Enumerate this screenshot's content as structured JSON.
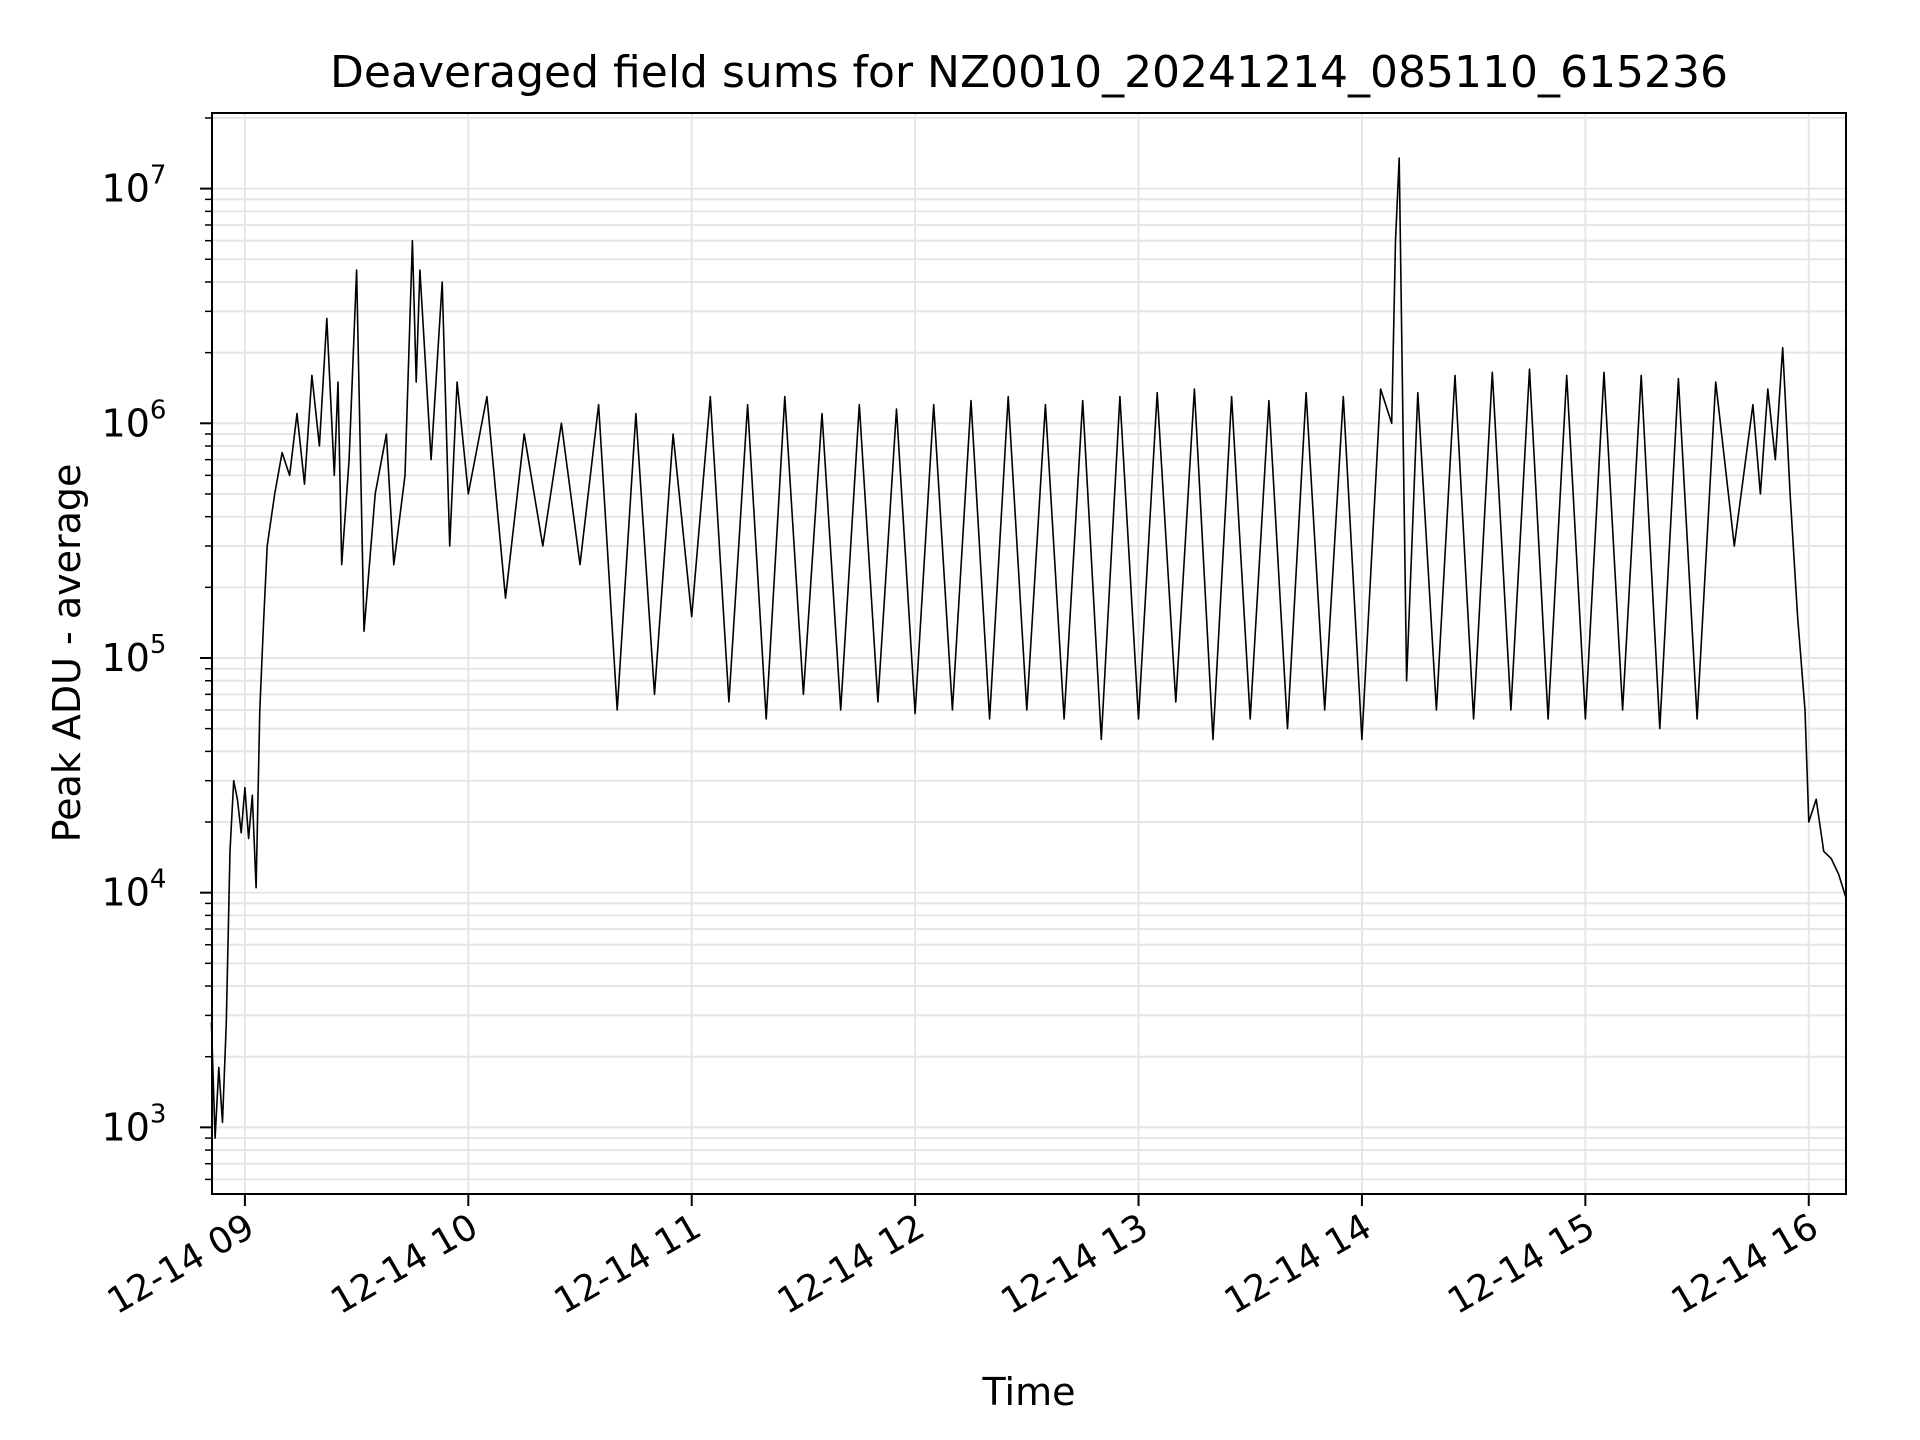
{
  "chart_data": {
    "type": "line",
    "title": "Deaveraged field sums for NZ0010_20241214_085110_615236",
    "xlabel": "Time",
    "ylabel": "Peak ADU - average",
    "yscale": "log",
    "ylim": [
      520,
      21000000
    ],
    "xlim": [
      "2024-12-14 08:51:10",
      "2024-12-14 16:10:00"
    ],
    "x_ticks": [
      {
        "time": "2024-12-14 09:00",
        "label": "12-14 09"
      },
      {
        "time": "2024-12-14 10:00",
        "label": "12-14 10"
      },
      {
        "time": "2024-12-14 11:00",
        "label": "12-14 11"
      },
      {
        "time": "2024-12-14 12:00",
        "label": "12-14 12"
      },
      {
        "time": "2024-12-14 13:00",
        "label": "12-14 13"
      },
      {
        "time": "2024-12-14 14:00",
        "label": "12-14 14"
      },
      {
        "time": "2024-12-14 15:00",
        "label": "12-14 15"
      },
      {
        "time": "2024-12-14 16:00",
        "label": "12-14 16"
      }
    ],
    "y_ticks": [
      {
        "value": 1000,
        "base": "10",
        "exp": "3"
      },
      {
        "value": 10000,
        "base": "10",
        "exp": "4"
      },
      {
        "value": 100000,
        "base": "10",
        "exp": "5"
      },
      {
        "value": 1000000,
        "base": "10",
        "exp": "6"
      },
      {
        "value": 10000000,
        "base": "10",
        "exp": "7"
      }
    ],
    "grid": true,
    "line_color": "#000000",
    "grid_color": "#e6e6e6",
    "series": [
      {
        "x": [
          "2024-12-14 08:51",
          "2024-12-14 08:52",
          "2024-12-14 08:53",
          "2024-12-14 08:54",
          "2024-12-14 08:55",
          "2024-12-14 08:56",
          "2024-12-14 08:57",
          "2024-12-14 08:58",
          "2024-12-14 08:59",
          "2024-12-14 09:00",
          "2024-12-14 09:01",
          "2024-12-14 09:02",
          "2024-12-14 09:03",
          "2024-12-14 09:04",
          "2024-12-14 09:05",
          "2024-12-14 09:06",
          "2024-12-14 09:08",
          "2024-12-14 09:10",
          "2024-12-14 09:12",
          "2024-12-14 09:14",
          "2024-12-14 09:16",
          "2024-12-14 09:18",
          "2024-12-14 09:20",
          "2024-12-14 09:22",
          "2024-12-14 09:24",
          "2024-12-14 09:25",
          "2024-12-14 09:26",
          "2024-12-14 09:28",
          "2024-12-14 09:30",
          "2024-12-14 09:32",
          "2024-12-14 09:35",
          "2024-12-14 09:38",
          "2024-12-14 09:40",
          "2024-12-14 09:43",
          "2024-12-14 09:45",
          "2024-12-14 09:46",
          "2024-12-14 09:47",
          "2024-12-14 09:50",
          "2024-12-14 09:53",
          "2024-12-14 09:55",
          "2024-12-14 09:57",
          "2024-12-14 10:00",
          "2024-12-14 10:05",
          "2024-12-14 10:10",
          "2024-12-14 10:15",
          "2024-12-14 10:20",
          "2024-12-14 10:25",
          "2024-12-14 10:30",
          "2024-12-14 10:35",
          "2024-12-14 10:40",
          "2024-12-14 10:45",
          "2024-12-14 10:50",
          "2024-12-14 10:55",
          "2024-12-14 11:00",
          "2024-12-14 11:05",
          "2024-12-14 11:10",
          "2024-12-14 11:15",
          "2024-12-14 11:20",
          "2024-12-14 11:25",
          "2024-12-14 11:30",
          "2024-12-14 11:35",
          "2024-12-14 11:40",
          "2024-12-14 11:45",
          "2024-12-14 11:50",
          "2024-12-14 11:55",
          "2024-12-14 12:00",
          "2024-12-14 12:05",
          "2024-12-14 12:10",
          "2024-12-14 12:15",
          "2024-12-14 12:20",
          "2024-12-14 12:25",
          "2024-12-14 12:30",
          "2024-12-14 12:35",
          "2024-12-14 12:40",
          "2024-12-14 12:45",
          "2024-12-14 12:50",
          "2024-12-14 12:55",
          "2024-12-14 13:00",
          "2024-12-14 13:05",
          "2024-12-14 13:10",
          "2024-12-14 13:15",
          "2024-12-14 13:20",
          "2024-12-14 13:25",
          "2024-12-14 13:30",
          "2024-12-14 13:35",
          "2024-12-14 13:40",
          "2024-12-14 13:45",
          "2024-12-14 13:50",
          "2024-12-14 13:55",
          "2024-12-14 14:00",
          "2024-12-14 14:05",
          "2024-12-14 14:08",
          "2024-12-14 14:09",
          "2024-12-14 14:10",
          "2024-12-14 14:12",
          "2024-12-14 14:15",
          "2024-12-14 14:20",
          "2024-12-14 14:25",
          "2024-12-14 14:30",
          "2024-12-14 14:35",
          "2024-12-14 14:40",
          "2024-12-14 14:45",
          "2024-12-14 14:50",
          "2024-12-14 14:55",
          "2024-12-14 15:00",
          "2024-12-14 15:05",
          "2024-12-14 15:10",
          "2024-12-14 15:15",
          "2024-12-14 15:20",
          "2024-12-14 15:25",
          "2024-12-14 15:30",
          "2024-12-14 15:35",
          "2024-12-14 15:40",
          "2024-12-14 15:45",
          "2024-12-14 15:47",
          "2024-12-14 15:49",
          "2024-12-14 15:51",
          "2024-12-14 15:53",
          "2024-12-14 15:55",
          "2024-12-14 15:57",
          "2024-12-14 15:59",
          "2024-12-14 16:00",
          "2024-12-14 16:02",
          "2024-12-14 16:04",
          "2024-12-14 16:06",
          "2024-12-14 16:08",
          "2024-12-14 16:10"
        ],
        "y": [
          2800,
          900,
          1800,
          1050,
          2800,
          15000,
          30000,
          25000,
          18000,
          28000,
          17000,
          26000,
          10500,
          60000,
          140000,
          300000,
          500000,
          750000,
          600000,
          1100000,
          550000,
          1600000,
          800000,
          2800000,
          600000,
          1500000,
          250000,
          700000,
          4500000,
          130000,
          500000,
          900000,
          250000,
          600000,
          6000000,
          1500000,
          4500000,
          700000,
          4000000,
          300000,
          1500000,
          500000,
          1300000,
          180000,
          900000,
          300000,
          1000000,
          250000,
          1200000,
          60000,
          1100000,
          70000,
          900000,
          150000,
          1300000,
          65000,
          1200000,
          55000,
          1300000,
          70000,
          1100000,
          60000,
          1200000,
          65000,
          1150000,
          58000,
          1200000,
          60000,
          1250000,
          55000,
          1300000,
          60000,
          1200000,
          55000,
          1250000,
          45000,
          1300000,
          55000,
          1350000,
          65000,
          1400000,
          45000,
          1300000,
          55000,
          1250000,
          50000,
          1350000,
          60000,
          1300000,
          45000,
          1400000,
          1000000,
          6000000,
          13500000,
          80000,
          1350000,
          60000,
          1600000,
          55000,
          1650000,
          60000,
          1700000,
          55000,
          1600000,
          55000,
          1650000,
          60000,
          1600000,
          50000,
          1550000,
          55000,
          1500000,
          300000,
          1200000,
          500000,
          1400000,
          700000,
          2100000,
          500000,
          150000,
          60000,
          20000,
          25000,
          15000,
          14000,
          12000,
          9500
        ]
      }
    ]
  }
}
